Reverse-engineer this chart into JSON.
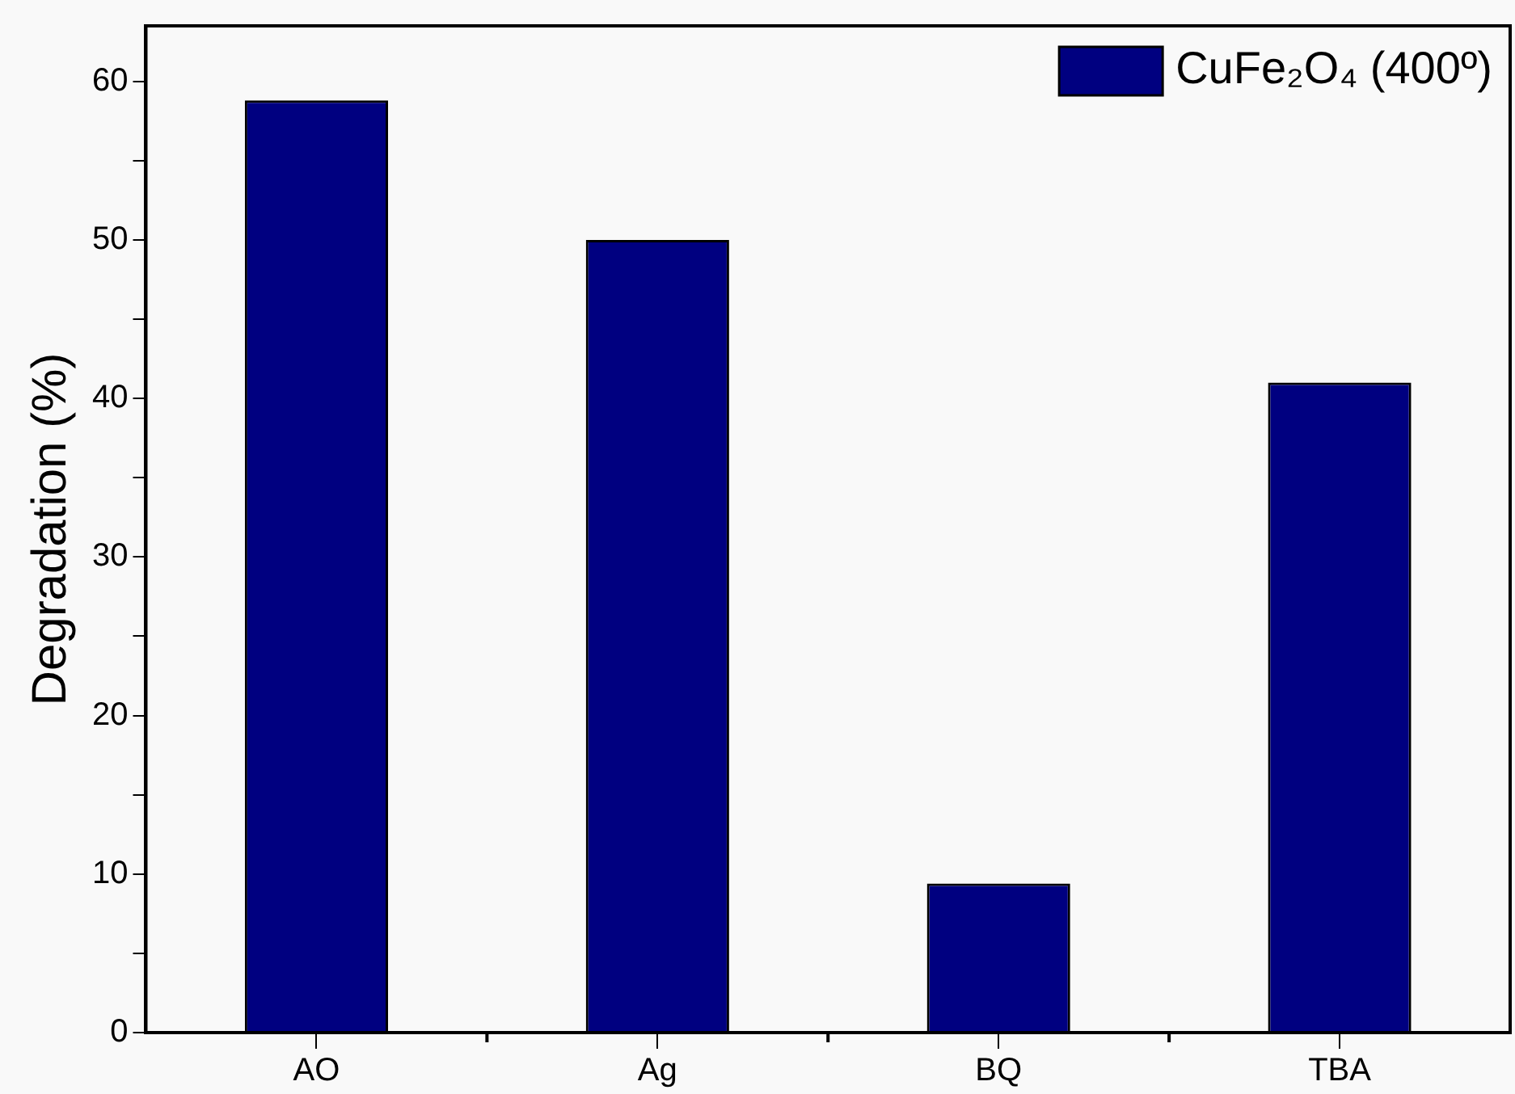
{
  "chart_data": {
    "type": "bar",
    "ylabel": "Degradation (%)",
    "categories": [
      "AO",
      "Ag",
      "BQ",
      "TBA"
    ],
    "series": [
      {
        "name": "CuFe₂O₄ (400º)",
        "color": "#000080",
        "values": [
          58.8,
          50,
          9.4,
          41
        ]
      }
    ],
    "ylim": [
      0,
      63.5
    ],
    "yticks": [
      0,
      {
        "value": 5,
        "label": null
      },
      10,
      {
        "value": 15,
        "label": null
      },
      20,
      {
        "value": 25,
        "label": null
      },
      30,
      {
        "value": 35,
        "label": null
      },
      40,
      {
        "value": 45,
        "label": null
      },
      50,
      {
        "value": 55,
        "label": null
      },
      60
    ],
    "grid": false,
    "legend": "top right"
  }
}
